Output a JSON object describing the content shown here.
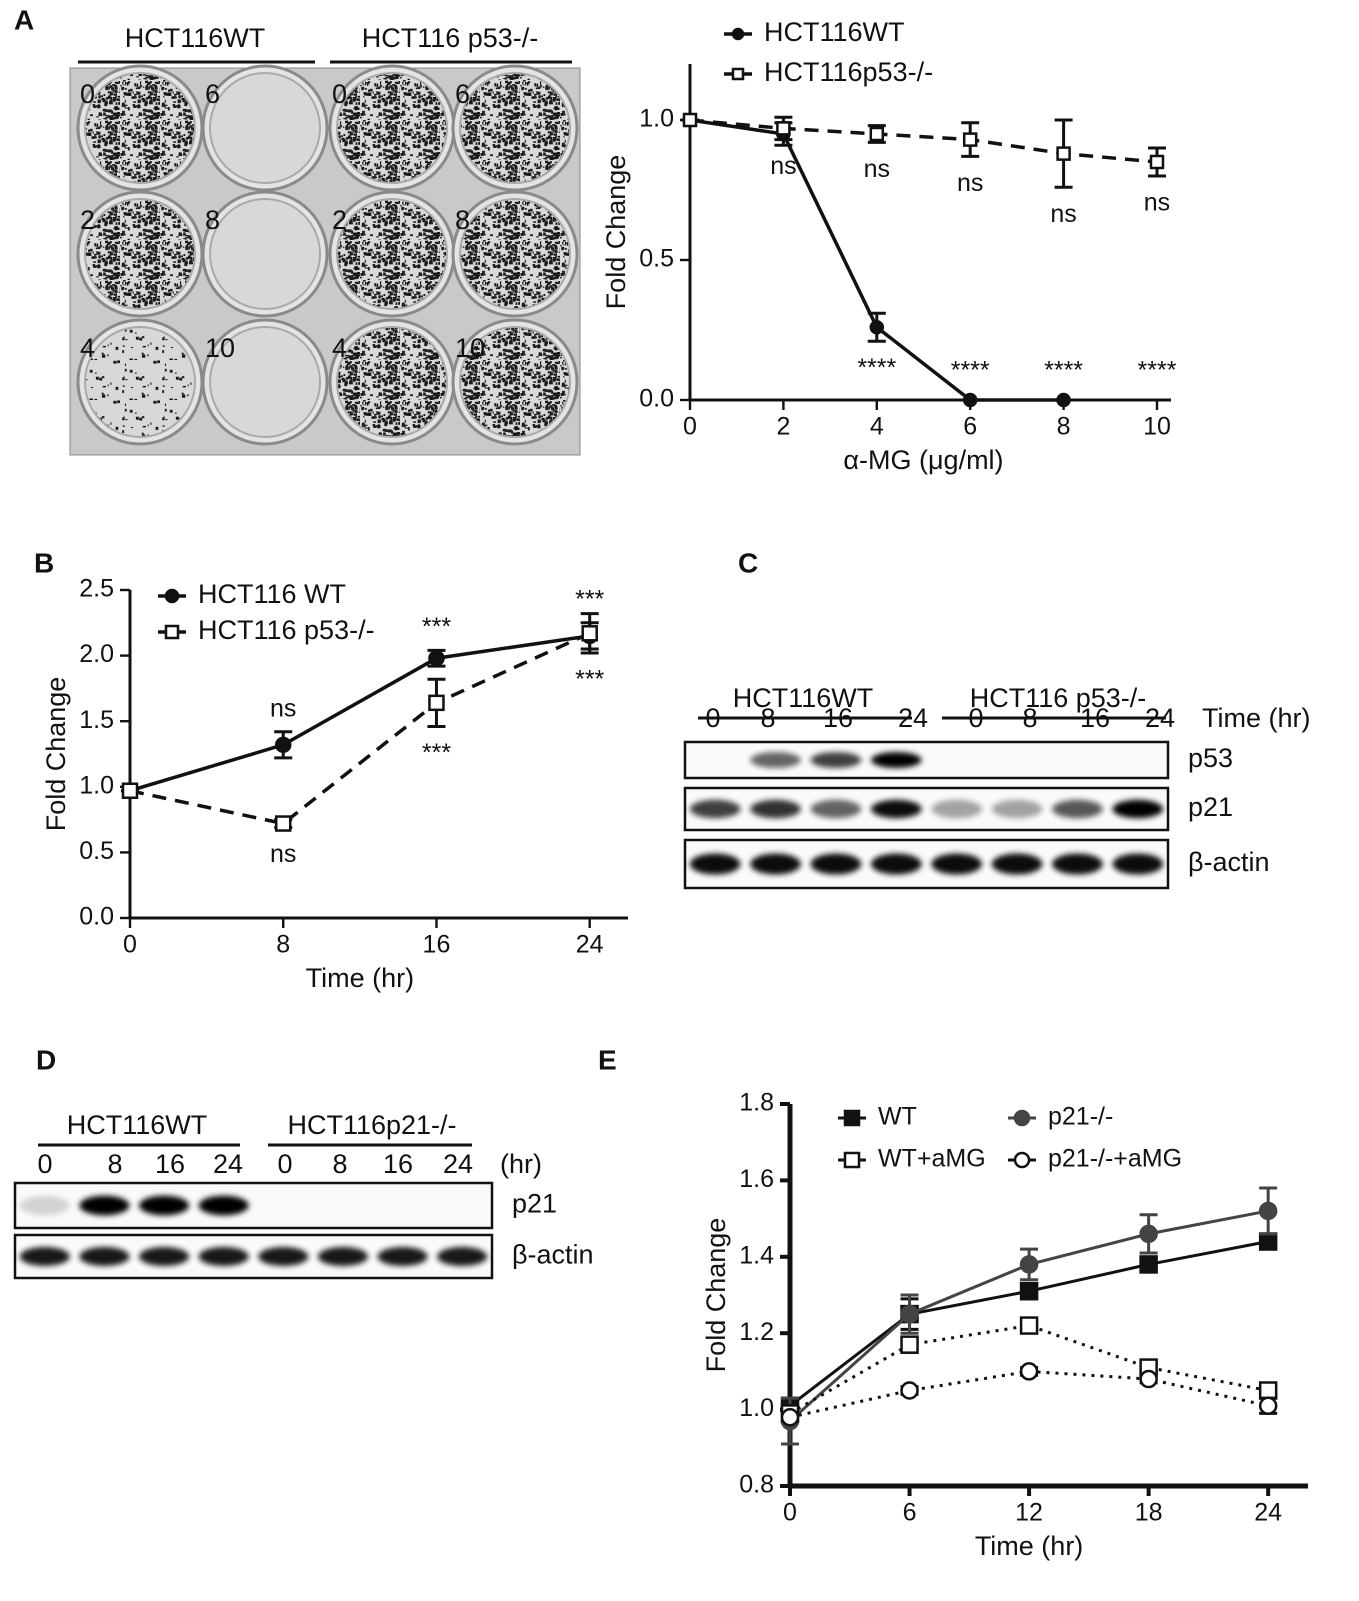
{
  "panels": [
    "A",
    "B",
    "C",
    "D",
    "E"
  ],
  "plate": {
    "groups": [
      "HCT116WT",
      "HCT116 p53-/-"
    ],
    "wells": [
      [
        "0",
        "6",
        "0",
        "6"
      ],
      [
        "2",
        "8",
        "2",
        "8"
      ],
      [
        "4",
        "10",
        "4",
        "10"
      ]
    ]
  },
  "blot_c": {
    "groups": [
      "HCT116WT",
      "HCT116 p53-/-"
    ],
    "lanes": [
      "0",
      "8",
      "16",
      "24",
      "0",
      "8",
      "16",
      "24"
    ],
    "lane_axis": "Time (hr)",
    "rows": [
      "p53",
      "p21",
      "β-actin"
    ]
  },
  "blot_d": {
    "groups": [
      "HCT116WT",
      "HCT116p21-/-"
    ],
    "lanes": [
      "0",
      "8",
      "16",
      "24",
      "0",
      "8",
      "16",
      "24"
    ],
    "lane_axis": "(hr)",
    "rows": [
      "p21",
      "β-actin"
    ]
  },
  "chart_data": [
    {
      "type": "line",
      "xlabel": "α-MG (μg/ml)",
      "ylabel": "Fold Change",
      "x": [
        0,
        2,
        4,
        6,
        8,
        10
      ],
      "xlim": [
        0,
        10.3
      ],
      "xticks": [
        0,
        2,
        4,
        6,
        8,
        10
      ],
      "ylim": [
        0,
        1.2
      ],
      "yticks": [
        {
          "value": 0,
          "label": "0.0"
        },
        {
          "value": 0.5,
          "label": "0.5"
        },
        {
          "value": 1,
          "label": "1.0"
        }
      ],
      "series": [
        {
          "name": "HCT116WT",
          "color": "#111111",
          "marker": "circle",
          "filled": true,
          "dash": "solid",
          "values": [
            1.0,
            0.95,
            0.26,
            0,
            0,
            null
          ],
          "errors": [
            0,
            0.04,
            0.05,
            0,
            0,
            null
          ],
          "labels": [
            null,
            null,
            "****",
            "****",
            "****",
            "****"
          ],
          "label_position": "below"
        },
        {
          "name": "HCT116p53-/-",
          "color": "#111111",
          "marker": "square",
          "filled": false,
          "dash": "dashed",
          "values": [
            1.0,
            0.97,
            0.95,
            0.93,
            0.88,
            0.85
          ],
          "errors": [
            0,
            0.04,
            0.03,
            0.06,
            0.12,
            0.05
          ],
          "labels": [
            null,
            "ns",
            "ns",
            "ns",
            "ns",
            "ns"
          ],
          "label_position": "below"
        }
      ]
    },
    {
      "type": "line",
      "xlabel": "Time (hr)",
      "ylabel": "Fold Change",
      "x": [
        0,
        8,
        16,
        24
      ],
      "xlim": [
        0,
        26
      ],
      "xticks": [
        0,
        8,
        16,
        24
      ],
      "ylim": [
        0,
        2.5
      ],
      "yticks": [
        {
          "value": 0,
          "label": "0.0"
        },
        {
          "value": 0.5,
          "label": "0.5"
        },
        {
          "value": 1,
          "label": "1.0"
        },
        {
          "value": 1.5,
          "label": "1.5"
        },
        {
          "value": 2,
          "label": "2.0"
        },
        {
          "value": 2.5,
          "label": "2.5"
        }
      ],
      "series": [
        {
          "name": "HCT116 WT",
          "color": "#111111",
          "marker": "circle",
          "filled": true,
          "dash": "solid",
          "values": [
            0.97,
            1.32,
            1.98,
            2.15
          ],
          "errors": [
            0,
            0.1,
            0.06,
            0.1
          ],
          "labels": [
            null,
            "ns",
            "***",
            "***"
          ],
          "label_position": "above"
        },
        {
          "name": "HCT116 p53-/-",
          "color": "#111111",
          "marker": "square",
          "filled": false,
          "dash": "dashed",
          "values": [
            0.97,
            0.72,
            1.64,
            2.17
          ],
          "errors": [
            0,
            0.03,
            0.18,
            0.15
          ],
          "labels": [
            null,
            "ns",
            "***",
            "***"
          ],
          "label_position": "below"
        }
      ]
    },
    {
      "type": "line",
      "xlabel": "Time (hr)",
      "ylabel": "Fold Change",
      "x": [
        0,
        6,
        12,
        18,
        24
      ],
      "xlim": [
        0,
        26
      ],
      "xticks": [
        0,
        6,
        12,
        18,
        24
      ],
      "ylim": [
        0.8,
        1.8
      ],
      "yticks": [
        {
          "value": 0.8,
          "label": "0.8"
        },
        {
          "value": 1,
          "label": "1.0"
        },
        {
          "value": 1.2,
          "label": "1.2"
        },
        {
          "value": 1.4,
          "label": "1.4"
        },
        {
          "value": 1.6,
          "label": "1.6"
        },
        {
          "value": 1.8,
          "label": "1.8"
        }
      ],
      "series": [
        {
          "name": "WT",
          "color": "#111111",
          "marker": "square",
          "filled": true,
          "dash": "solid",
          "values": [
            1.01,
            1.25,
            1.31,
            1.38,
            1.44
          ],
          "errors": [
            0,
            0.04,
            0.02,
            0.01,
            0.01
          ]
        },
        {
          "name": "p21-/-",
          "color": "#444444",
          "marker": "circle",
          "filled": true,
          "dash": "solid",
          "values": [
            0.97,
            1.25,
            1.38,
            1.46,
            1.52
          ],
          "errors": [
            0.06,
            0.05,
            0.04,
            0.05,
            0.06
          ]
        },
        {
          "name": "WT+aMG",
          "color": "#111111",
          "marker": "square",
          "filled": false,
          "dash": "dotted",
          "values": [
            0.99,
            1.17,
            1.22,
            1.11,
            1.05
          ],
          "errors": [
            0,
            0.02,
            0.01,
            0.01,
            0.01
          ]
        },
        {
          "name": "p21-/-+aMG",
          "color": "#111111",
          "marker": "circle",
          "filled": false,
          "dash": "dotted",
          "values": [
            0.98,
            1.05,
            1.1,
            1.08,
            1.01
          ],
          "errors": [
            0,
            0.01,
            0.01,
            0.01,
            0.02
          ]
        }
      ]
    }
  ]
}
